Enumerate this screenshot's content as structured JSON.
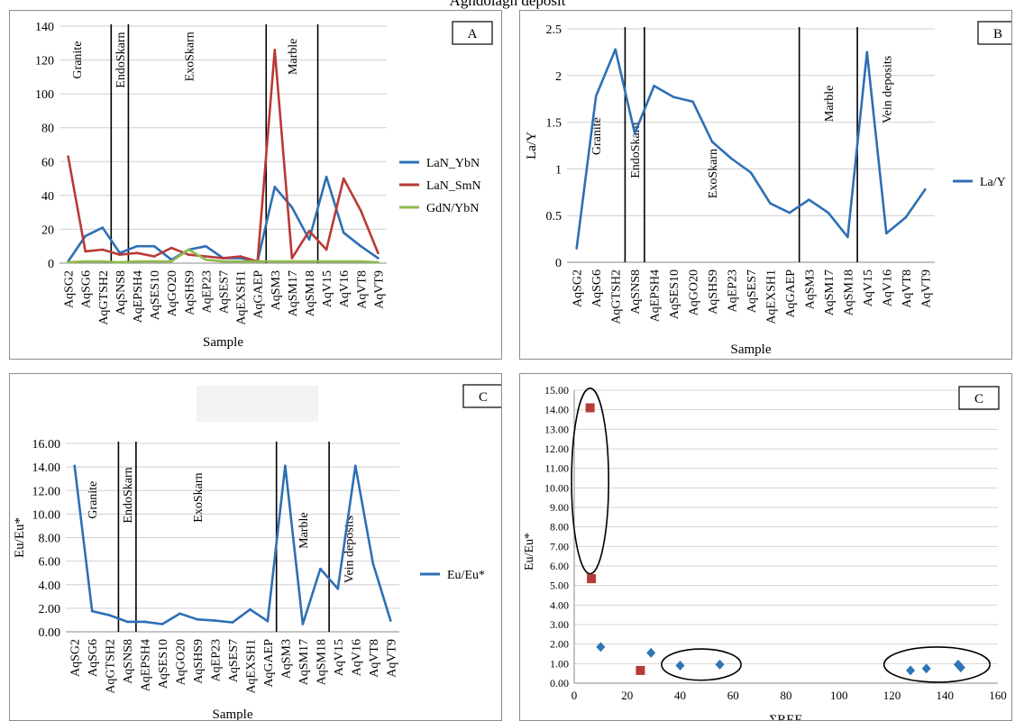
{
  "page_title": "Aghdolagh deposit",
  "chart_data": [
    {
      "panel_label": "A",
      "type": "line",
      "xlabel": "Sample",
      "ylabel": "",
      "ylim": [
        0,
        140
      ],
      "yticks": [
        "0",
        "20",
        "40",
        "60",
        "80",
        "100",
        "120",
        "140"
      ],
      "grid": "horizontal",
      "legend": "right",
      "categories": [
        "AqSG2",
        "AqSG6",
        "AqGTSH2",
        "AqSNS8",
        "AqEPSH4",
        "AqSES10",
        "AqGO20",
        "AqSHS9",
        "AqEP23",
        "AqSES7",
        "AqEXSH1",
        "AqGAEP",
        "AqSM3",
        "AqSM17",
        "AqSM18",
        "AqV15",
        "AqV16",
        "AqVT8",
        "AqVT9"
      ],
      "series": [
        {
          "name": "LaN_YbN",
          "color": "#2e6fb5",
          "values": [
            1,
            16,
            21,
            6,
            10,
            10,
            2,
            8,
            10,
            3,
            3,
            1,
            45,
            33,
            14,
            51,
            18,
            10,
            3
          ]
        },
        {
          "name": "LaN_SmN",
          "color": "#b83a36",
          "values": [
            63,
            7,
            8,
            5,
            6,
            4,
            9,
            5,
            4,
            3,
            4,
            1,
            126,
            3,
            19,
            8,
            50,
            31,
            6
          ]
        },
        {
          "name": "GdN/YbN",
          "color": "#8fba4d",
          "values": [
            0.5,
            1,
            1,
            0.5,
            1,
            1,
            1,
            8,
            2,
            1,
            1,
            1,
            1,
            1,
            1,
            1,
            1,
            1,
            0.5
          ]
        }
      ],
      "zone_lines_after_index": [
        2,
        3,
        11,
        14
      ],
      "zones": [
        {
          "label": "Granite",
          "center": 0.5,
          "y": 120
        },
        {
          "label": "EndoSkarn",
          "center": 3,
          "y": 120
        },
        {
          "label": "ExoSkarn",
          "center": 7,
          "y": 122
        },
        {
          "label": "Marble",
          "center": 13,
          "y": 122
        }
      ]
    },
    {
      "panel_label": "B",
      "type": "line",
      "xlabel": "Sample",
      "ylabel": "La/Y",
      "ylim": [
        0,
        2.5
      ],
      "yticks": [
        "0",
        "0.5",
        "1",
        "1.5",
        "2",
        "2.5"
      ],
      "grid": "horizontal",
      "legend": "right",
      "categories": [
        "AqSG2",
        "AqSG6",
        "AqGTSH2",
        "AqSNS8",
        "AqEPSH4",
        "AqSES10",
        "AqGO20",
        "AqSHS9",
        "AqEP23",
        "AqSES7",
        "AqEXSH1",
        "AqGAEP",
        "AqSM3",
        "AqSM17",
        "AqSM18",
        "AqV15",
        "AqV16",
        "AqVT8",
        "AqVT9"
      ],
      "series": [
        {
          "name": "La/Y",
          "color": "#2e6fb5",
          "values": [
            0.15,
            1.78,
            2.28,
            1.38,
            1.89,
            1.77,
            1.72,
            1.29,
            1.11,
            0.96,
            0.63,
            0.53,
            0.67,
            0.53,
            0.27,
            2.25,
            0.31,
            0.48,
            0.78
          ]
        }
      ],
      "zone_lines_after_index": [
        2,
        3,
        11,
        14
      ],
      "zones": [
        {
          "label": "Granite",
          "center": 1,
          "y": 1.35
        },
        {
          "label": "EndoSkarn",
          "center": 3,
          "y": 1.2
        },
        {
          "label": "ExoSkarn",
          "center": 7,
          "y": 0.95
        },
        {
          "label": "Marble",
          "center": 13,
          "y": 1.7
        },
        {
          "label": "Vein deposits",
          "center": 16,
          "y": 1.85
        }
      ]
    },
    {
      "panel_label": "C",
      "type": "line",
      "xlabel": "Sample",
      "ylabel": "Eu/Eu*",
      "ylim": [
        0,
        16
      ],
      "yticks": [
        "0.00",
        "2.00",
        "4.00",
        "6.00",
        "8.00",
        "10.00",
        "12.00",
        "14.00",
        "16.00"
      ],
      "grid": "horizontal",
      "legend": "right",
      "categories": [
        "AqSG2",
        "AqSG6",
        "AqGTSH2",
        "AqSNS8",
        "AqEPSH4",
        "AqSES10",
        "AqGO20",
        "AqSHS9",
        "AqEP23",
        "AqSES7",
        "AqEXSH1",
        "AqGAEP",
        "AqSM3",
        "AqSM17",
        "AqSM18",
        "AqV15",
        "AqV16",
        "AqVT8",
        "AqVT9"
      ],
      "series": [
        {
          "name": "Eu/Eu*",
          "color": "#2e6fb5",
          "values": [
            14.1,
            1.75,
            1.4,
            0.85,
            0.85,
            0.65,
            1.55,
            1.05,
            0.95,
            0.8,
            1.9,
            0.9,
            14.1,
            0.65,
            5.35,
            3.65,
            14.1,
            5.8,
            0.95
          ]
        }
      ],
      "zone_lines_after_index": [
        2,
        3,
        11,
        14
      ],
      "zones": [
        {
          "label": "Granite",
          "center": 1,
          "y": 11.2
        },
        {
          "label": "EndoSkarn",
          "center": 3,
          "y": 11.6
        },
        {
          "label": "ExoSkarn",
          "center": 7,
          "y": 11.4
        },
        {
          "label": "Marble",
          "center": 13,
          "y": 8.6
        },
        {
          "label": "Vein deposits",
          "center": 15.6,
          "y": 7.0
        }
      ]
    },
    {
      "panel_label": "C",
      "type": "scatter",
      "xlabel": "ΣREE",
      "ylabel": "Eu/Eu*",
      "xlim": [
        0,
        160
      ],
      "ylim": [
        0,
        15
      ],
      "xticks": [
        "0",
        "20",
        "40",
        "60",
        "80",
        "100",
        "120",
        "140",
        "160"
      ],
      "yticks": [
        "0.00",
        "1.00",
        "2.00",
        "3.00",
        "4.00",
        "5.00",
        "6.00",
        "7.00",
        "8.00",
        "9.00",
        "10.00",
        "11.00",
        "12.00",
        "13.00",
        "14.00",
        "15.00"
      ],
      "grid": "horizontal",
      "series": [
        {
          "marker": "square",
          "color": "#b83a36",
          "points": [
            [
              6,
              14.1
            ],
            [
              6.5,
              5.35
            ],
            [
              25,
              0.65
            ]
          ]
        },
        {
          "marker": "diamond",
          "color": "#2e75b6",
          "points": [
            [
              10,
              1.85
            ],
            [
              29,
              1.55
            ],
            [
              40,
              0.9
            ],
            [
              55,
              0.95
            ],
            [
              127,
              0.65
            ],
            [
              133,
              0.75
            ],
            [
              145,
              0.95
            ],
            [
              146,
              0.8
            ]
          ]
        }
      ],
      "ellipses": [
        {
          "cx": 6,
          "cy": 10.35,
          "rx": 7,
          "ry": 4.75
        },
        {
          "cx": 48,
          "cy": 0.95,
          "rx": 15,
          "ry": 0.8
        },
        {
          "cx": 137,
          "cy": 0.95,
          "rx": 20,
          "ry": 0.9
        }
      ]
    }
  ]
}
